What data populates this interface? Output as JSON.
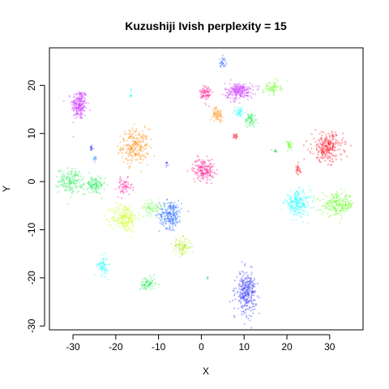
{
  "chart_data": {
    "type": "scatter",
    "title": "Kuzushiji Ivish perplexity = 15",
    "xlabel": "X",
    "ylabel": "Y",
    "xlim": [
      -35.5,
      37.8
    ],
    "ylim": [
      -30.8,
      27.8
    ],
    "xticks": [
      -30,
      -20,
      -10,
      0,
      10,
      20,
      30
    ],
    "yticks": [
      -30,
      -20,
      -10,
      0,
      10,
      20
    ],
    "tick_labels_x": [
      "-30",
      "-20",
      "-10",
      "0",
      "10",
      "20",
      "30"
    ],
    "tick_labels_y": [
      "-30",
      "-20",
      "-10",
      "0",
      "10",
      "20"
    ],
    "clusters": [
      {
        "color": "#cc33ff",
        "cx": -28.5,
        "cy": 16.0,
        "rx": 1.8,
        "ry": 3.2,
        "n": 220
      },
      {
        "color": "#33ffff",
        "cx": -16.5,
        "cy": 18.0,
        "rx": 0.3,
        "ry": 1.0,
        "n": 12
      },
      {
        "color": "#ff8800",
        "cx": -15.5,
        "cy": 7.3,
        "rx": 3.2,
        "ry": 3.6,
        "n": 240
      },
      {
        "color": "#3333ff",
        "cx": -25.7,
        "cy": 7.0,
        "rx": 0.4,
        "ry": 1.0,
        "n": 12
      },
      {
        "color": "#3399ff",
        "cx": -24.8,
        "cy": 4.6,
        "rx": 0.6,
        "ry": 0.6,
        "n": 12
      },
      {
        "color": "#22ee55",
        "cx": -30.5,
        "cy": 0.2,
        "rx": 2.8,
        "ry": 2.5,
        "n": 160
      },
      {
        "color": "#22ee55",
        "cx": -25.0,
        "cy": -0.8,
        "rx": 2.5,
        "ry": 1.8,
        "n": 110
      },
      {
        "color": "#ff1199",
        "cx": -18.0,
        "cy": -1.2,
        "rx": 1.8,
        "ry": 1.8,
        "n": 60
      },
      {
        "color": "#ccff22",
        "cx": -18.0,
        "cy": -7.5,
        "rx": 3.0,
        "ry": 3.0,
        "n": 220
      },
      {
        "color": "#2266ff",
        "cx": -7.2,
        "cy": -6.8,
        "rx": 2.6,
        "ry": 2.9,
        "n": 220
      },
      {
        "color": "#66ff44",
        "cx": -11.5,
        "cy": -5.5,
        "rx": 2.5,
        "ry": 1.5,
        "n": 70
      },
      {
        "color": "#bbee33",
        "cx": -4.5,
        "cy": -13.5,
        "rx": 2.2,
        "ry": 1.8,
        "n": 110
      },
      {
        "color": "#22ffff",
        "cx": -23.0,
        "cy": -17.5,
        "rx": 1.2,
        "ry": 2.0,
        "n": 70
      },
      {
        "color": "#22ee55",
        "cx": -12.5,
        "cy": -21.3,
        "rx": 1.8,
        "ry": 1.5,
        "n": 70
      },
      {
        "color": "#3333ff",
        "cx": -8.0,
        "cy": 4.0,
        "rx": 0.3,
        "ry": 0.7,
        "n": 8
      },
      {
        "color": "#ff2299",
        "cx": 0.5,
        "cy": 2.5,
        "rx": 2.5,
        "ry": 2.3,
        "n": 190
      },
      {
        "color": "#3366ff",
        "cx": 5.0,
        "cy": 24.8,
        "rx": 0.8,
        "ry": 1.0,
        "n": 30
      },
      {
        "color": "#ff2299",
        "cx": 1.0,
        "cy": 18.3,
        "rx": 1.3,
        "ry": 2.0,
        "n": 80
      },
      {
        "color": "#cc33ff",
        "cx": 8.8,
        "cy": 18.8,
        "rx": 3.3,
        "ry": 1.7,
        "n": 220
      },
      {
        "color": "#ff8800",
        "cx": 3.8,
        "cy": 14.0,
        "rx": 1.2,
        "ry": 1.3,
        "n": 60
      },
      {
        "color": "#22ffff",
        "cx": 9.0,
        "cy": 14.5,
        "rx": 1.5,
        "ry": 1.3,
        "n": 40
      },
      {
        "color": "#22ee55",
        "cx": 11.5,
        "cy": 12.8,
        "rx": 1.3,
        "ry": 1.5,
        "n": 60
      },
      {
        "color": "#ff1122",
        "cx": 8.0,
        "cy": 9.5,
        "rx": 0.6,
        "ry": 0.8,
        "n": 18
      },
      {
        "color": "#66ff22",
        "cx": 16.5,
        "cy": 19.5,
        "rx": 2.0,
        "ry": 1.3,
        "n": 70
      },
      {
        "color": "#66ff22",
        "cx": 20.5,
        "cy": 7.5,
        "rx": 1.0,
        "ry": 1.2,
        "n": 30
      },
      {
        "color": "#33cc55",
        "cx": 17.3,
        "cy": 6.3,
        "rx": 0.8,
        "ry": 0.4,
        "n": 10
      },
      {
        "color": "#ff1122",
        "cx": 29.5,
        "cy": 7.2,
        "rx": 3.6,
        "ry": 3.0,
        "n": 260
      },
      {
        "color": "#ff1122",
        "cx": 22.5,
        "cy": 2.3,
        "rx": 1.0,
        "ry": 1.3,
        "n": 25
      },
      {
        "color": "#22ffff",
        "cx": 22.5,
        "cy": -4.5,
        "rx": 3.0,
        "ry": 2.5,
        "n": 220
      },
      {
        "color": "#66ff22",
        "cx": 32.0,
        "cy": -4.8,
        "rx": 3.8,
        "ry": 2.2,
        "n": 220
      },
      {
        "color": "#3333ff",
        "cx": 10.5,
        "cy": -23.0,
        "rx": 2.3,
        "ry": 4.2,
        "n": 300
      },
      {
        "color": "#22cc55",
        "cx": 1.5,
        "cy": -20.0,
        "rx": 0.2,
        "ry": 0.3,
        "n": 4
      }
    ]
  }
}
